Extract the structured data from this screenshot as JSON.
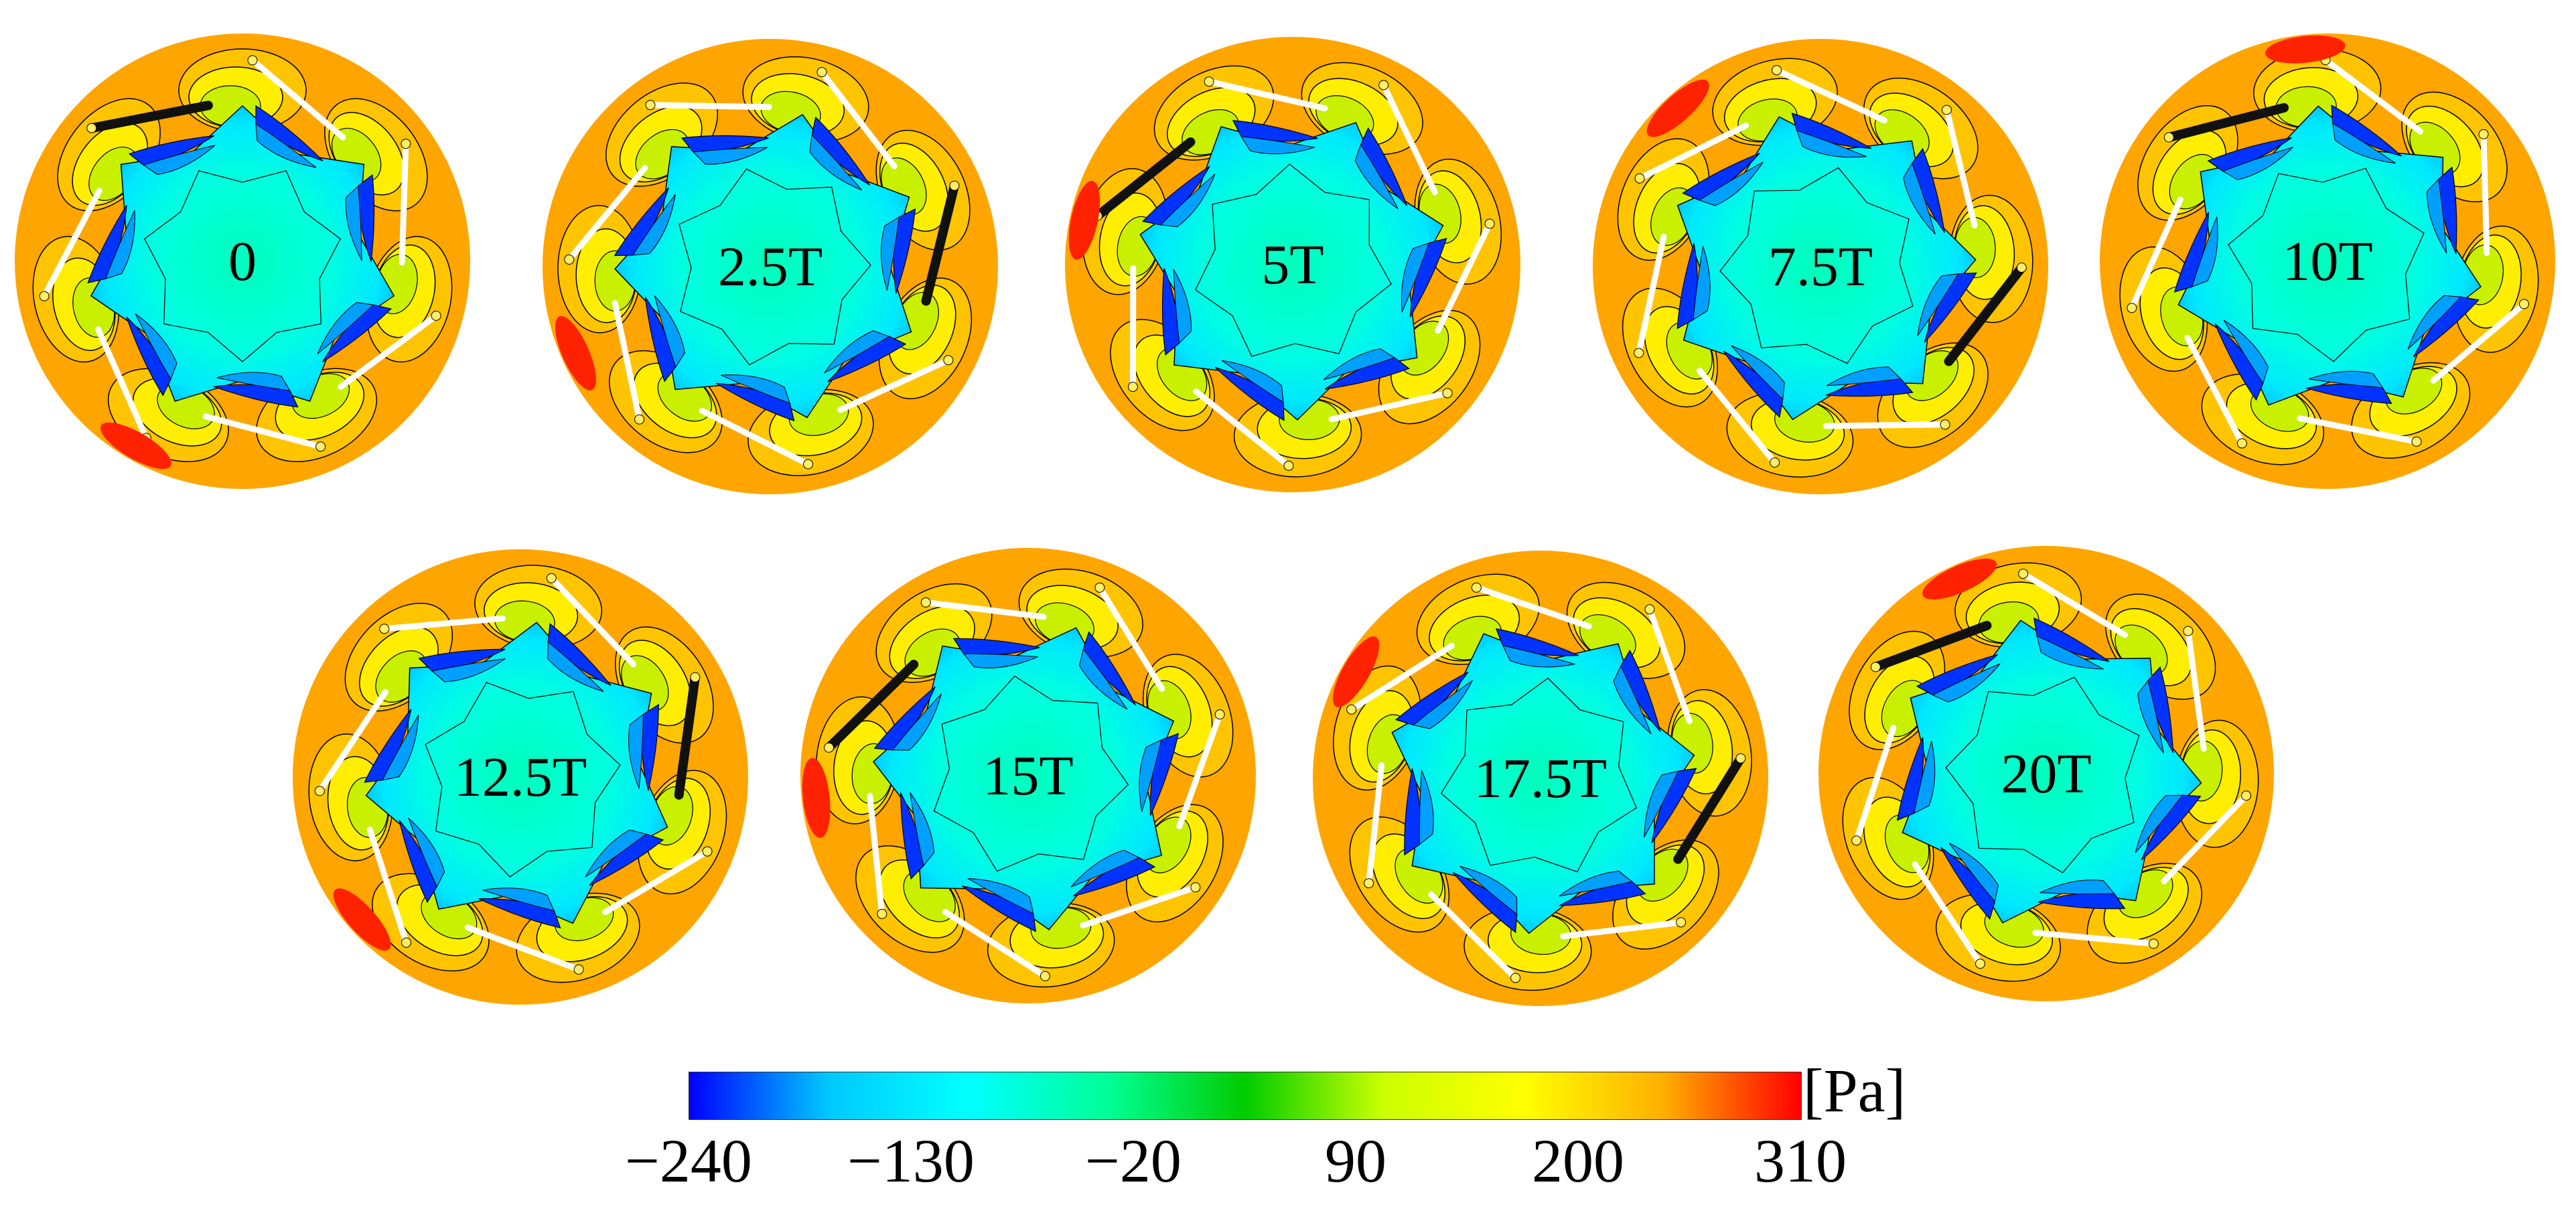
{
  "figure": {
    "panels": [
      {
        "label": "0",
        "rotation_deg": 0,
        "dark_blade": 6
      },
      {
        "label": "2.5T",
        "rotation_deg": 12,
        "dark_blade": 1
      },
      {
        "label": "5T",
        "rotation_deg": 24,
        "dark_blade": 5
      },
      {
        "label": "7.5T",
        "rotation_deg": 36,
        "dark_blade": 1
      },
      {
        "label": "10T",
        "rotation_deg": 48,
        "dark_blade": 5
      },
      {
        "label": "12.5T",
        "rotation_deg": 6,
        "dark_blade": 1
      },
      {
        "label": "15T",
        "rotation_deg": 18,
        "dark_blade": 5
      },
      {
        "label": "17.5T",
        "rotation_deg": 30,
        "dark_blade": 1
      },
      {
        "label": "20T",
        "rotation_deg": 42,
        "dark_blade": 5
      }
    ],
    "blade_count": 7
  },
  "colorbar": {
    "unit": "[Pa]",
    "ticks": [
      "−240",
      "−130",
      "−20",
      "90",
      "200",
      "310"
    ],
    "min": -240,
    "max": 310,
    "stops": [
      "#0000ff",
      "#00c8ff",
      "#00ffff",
      "#00ff99",
      "#00cc00",
      "#ccff00",
      "#ffff00",
      "#ffb000",
      "#ff0000"
    ]
  },
  "colors": {
    "outer_ring": "#ffa500",
    "hub": "#00ffcc",
    "low_pressure": "#0033ff",
    "high_pressure": "#ff2200",
    "blade": "#ffffff"
  }
}
